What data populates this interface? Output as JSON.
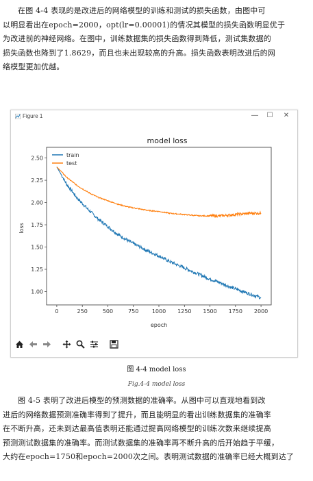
{
  "intro_lines": [
    "在图 4-4 表现的是改进后的网络模型的训练和测试的损失函数，由图中可",
    "以明显看出在epoch=2000，opt(lr=0.00001)的情况其模型的损失函数明显优于",
    "为改进前的神经网络。在图中，训练数据集的损失函数得到降低，测试集数据的",
    "损失函数也降到了1.8629，而且也未出现较高的升高。损失函数表明改进后的网",
    "络模型更加优越。"
  ],
  "window": {
    "title": "Figure 1",
    "minimize": "—",
    "maximize": "☐",
    "close": "✕"
  },
  "toolbar_icons": [
    "home-icon",
    "back-arrow-icon",
    "forward-arrow-icon",
    "pan-icon",
    "zoom-icon",
    "configure-subplots-icon",
    "save-icon"
  ],
  "caption_cn": "图 4-4 model loss",
  "caption_en": "Fig.4-4 model loss",
  "body_lines": [
    "图 4-5 表明了改进后模型的预测数据的准确率。从图中可以直观地看到改",
    "进后的网络数据预测准确率得到了提升，而且能明显的看出训练数据集的准确率",
    "在不断升高，还未到达最高值表明还能通过提高网络模型的训练次数来继续提高",
    "预测测试数据集的准确率。而测试数据集的准确率再不断升高的后开始趋于平缓，",
    "大约在epoch=1750和epoch=2000次之间。表明测试数据的准确率已经大概到达了"
  ],
  "colors": {
    "train": "#1f77b4",
    "test": "#ff7f0e"
  },
  "chart_data": {
    "type": "line",
    "title": "model loss",
    "xlabel": "epoch",
    "ylabel": "loss",
    "xlim": [
      -100,
      2100
    ],
    "ylim": [
      0.85,
      2.62
    ],
    "xticks": [
      0,
      250,
      500,
      750,
      1000,
      1250,
      1500,
      1750,
      2000
    ],
    "yticks": [
      1.0,
      1.25,
      1.5,
      1.75,
      2.0,
      2.25,
      2.5
    ],
    "ytick_labels": [
      "1.00",
      "1.25",
      "1.50",
      "1.75",
      "2.00",
      "2.25",
      "2.50"
    ],
    "grid": false,
    "legend_position": "top-left",
    "x": [
      0,
      100,
      200,
      300,
      400,
      500,
      600,
      700,
      800,
      900,
      1000,
      1100,
      1200,
      1300,
      1400,
      1500,
      1600,
      1700,
      1800,
      1900,
      2000
    ],
    "series": [
      {
        "name": "train",
        "values": [
          2.4,
          2.2,
          2.05,
          1.93,
          1.82,
          1.73,
          1.64,
          1.57,
          1.51,
          1.45,
          1.4,
          1.34,
          1.29,
          1.24,
          1.19,
          1.14,
          1.1,
          1.05,
          1.01,
          0.97,
          0.93
        ]
      },
      {
        "name": "test",
        "values": [
          2.4,
          2.28,
          2.19,
          2.12,
          2.06,
          2.02,
          1.98,
          1.95,
          1.93,
          1.91,
          1.9,
          1.88,
          1.87,
          1.86,
          1.85,
          1.85,
          1.85,
          1.86,
          1.87,
          1.88,
          1.88
        ]
      }
    ]
  }
}
